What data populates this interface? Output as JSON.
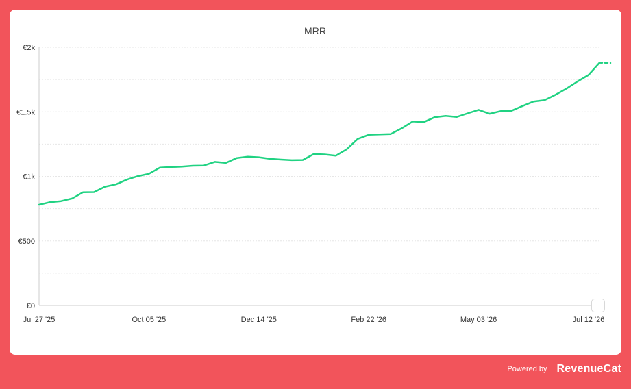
{
  "chart_data": {
    "type": "line",
    "title": "MRR",
    "xlabel": "",
    "ylabel": "",
    "ylim": [
      0,
      2000
    ],
    "yticks": [
      "€0",
      "€500",
      "€1k",
      "€1.5k",
      "€2k"
    ],
    "xticks": [
      "Jul 27 '25",
      "Oct 05 '25",
      "Dec 14 '25",
      "Feb 22 '26",
      "May 03 '26",
      "Jul 12 '26"
    ],
    "grid": true,
    "x": [
      "Jul 27 '25",
      "Aug 03 '25",
      "Aug 10 '25",
      "Aug 17 '25",
      "Aug 24 '25",
      "Aug 31 '25",
      "Sep 07 '25",
      "Sep 14 '25",
      "Sep 21 '25",
      "Sep 28 '25",
      "Oct 05 '25",
      "Oct 12 '25",
      "Oct 19 '25",
      "Oct 26 '25",
      "Nov 02 '25",
      "Nov 09 '25",
      "Nov 16 '25",
      "Nov 23 '25",
      "Nov 30 '25",
      "Dec 07 '25",
      "Dec 14 '25",
      "Dec 21 '25",
      "Dec 28 '25",
      "Jan 04 '26",
      "Jan 11 '26",
      "Jan 18 '26",
      "Jan 25 '26",
      "Feb 01 '26",
      "Feb 08 '26",
      "Feb 15 '26",
      "Feb 22 '26",
      "Mar 01 '26",
      "Mar 08 '26",
      "Mar 15 '26",
      "Mar 22 '26",
      "Mar 29 '26",
      "Apr 05 '26",
      "Apr 12 '26",
      "Apr 19 '26",
      "Apr 26 '26",
      "May 03 '26",
      "May 10 '26",
      "May 17 '26",
      "May 24 '26",
      "May 31 '26",
      "Jun 07 '26",
      "Jun 14 '26",
      "Jun 21 '26",
      "Jun 28 '26",
      "Jul 05 '26",
      "Jul 12 '26",
      "Jul 19 '26"
    ],
    "series": [
      {
        "values": [
          780,
          800,
          808,
          828,
          877,
          878,
          920,
          938,
          975,
          1002,
          1020,
          1068,
          1072,
          1076,
          1082,
          1084,
          1112,
          1104,
          1142,
          1152,
          1148,
          1136,
          1130,
          1125,
          1127,
          1173,
          1170,
          1160,
          1210,
          1290,
          1322,
          1325,
          1328,
          1372,
          1425,
          1420,
          1458,
          1468,
          1460,
          1488,
          1515,
          1485,
          1505,
          1508,
          1545,
          1580,
          1590,
          1632,
          1680,
          1735,
          1785,
          1880
        ],
        "projected_final": 1878
      }
    ],
    "colors": {
      "line": "#20d282"
    }
  },
  "footer": {
    "powered_by": "Powered by",
    "brand": "RevenueCat"
  }
}
